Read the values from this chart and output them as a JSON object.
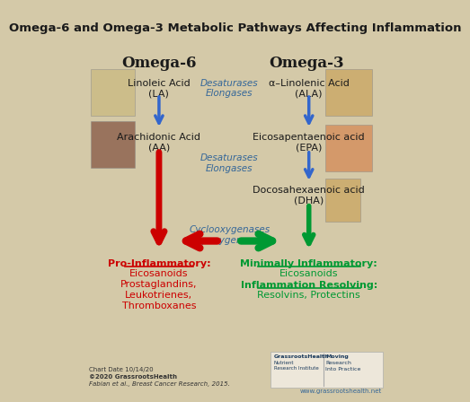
{
  "title": "Omega-6 and Omega-3 Metabolic Pathways Affecting Inflammation",
  "bg_color": "#d4c9a8",
  "title_color": "#1a1a1a",
  "omega6_header": "Omega-6",
  "omega3_header": "Omega-3",
  "pro_inflammatory_title": "Pro-Inflammatory:",
  "pro_inflammatory_items": [
    "Eicosanoids",
    "Prostaglandins,",
    "Leukotrienes,",
    "Thromboxanes"
  ],
  "min_inflammatory_title": "Minimally Inflammatory:",
  "min_inflammatory_items": [
    "Eicosanoids"
  ],
  "inflammation_resolving_title": "Inflammation Resolving:",
  "inflammation_resolving_items": [
    "Resolvins, Protectins"
  ],
  "red_color": "#cc0000",
  "blue_color": "#3366cc",
  "green_color": "#009933",
  "italic_color": "#336699",
  "footer1": "Chart Date 10/14/20",
  "footer2": "©2020 GrassrootsHealth",
  "footer3": "Fabian et al., Breast Cancer Research, 2015.",
  "footer4": "www.grassrootshealth.net"
}
